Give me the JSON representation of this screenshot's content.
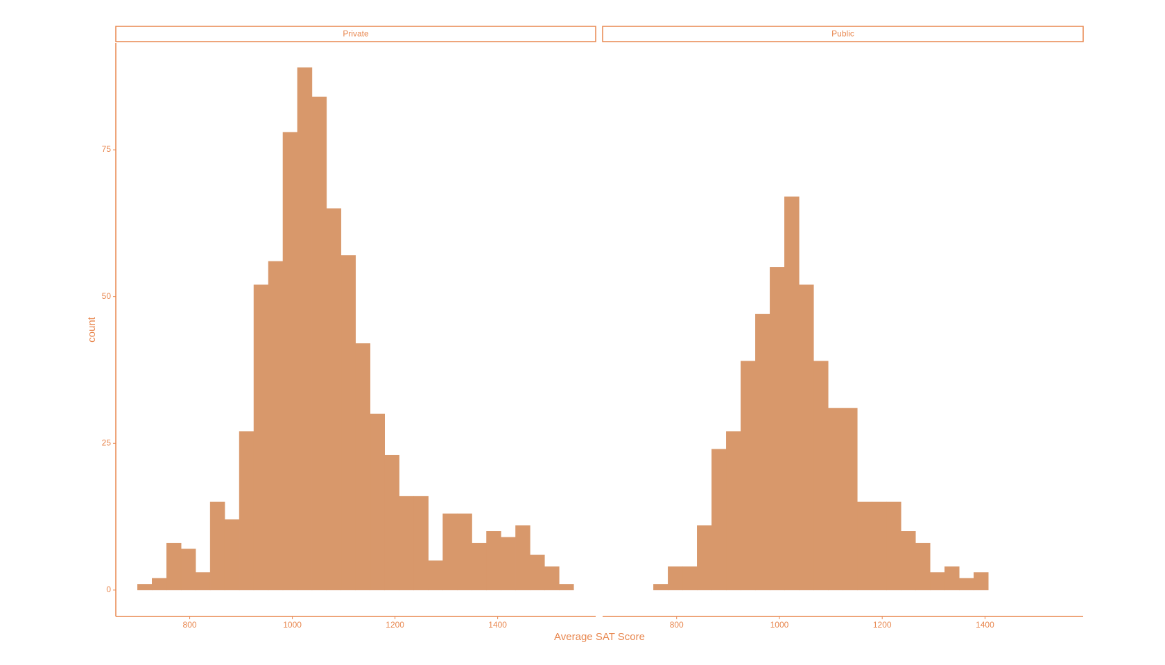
{
  "chart_data": [
    {
      "type": "histogram",
      "title": "Private",
      "xlabel": "Average SAT Score",
      "ylabel": "count",
      "color": "#d8986b",
      "axis_color": "#e8874f",
      "bins": [
        698.3,
        726.6,
        755.0,
        783.3,
        811.6,
        839.9,
        868.3,
        896.6,
        924.9,
        953.3,
        981.6,
        1009.9,
        1038.3,
        1066.6,
        1094.9,
        1123.2,
        1151.6,
        1179.9,
        1208.2,
        1236.6,
        1264.9,
        1293.2,
        1321.6,
        1349.9,
        1378.2,
        1406.5,
        1434.9,
        1463.2,
        1491.5,
        1519.9,
        1548.2
      ],
      "values": [
        1,
        2,
        8,
        7,
        3,
        15,
        12,
        27,
        52,
        56,
        78,
        89,
        84,
        65,
        57,
        42,
        30,
        23,
        16,
        16,
        5,
        13,
        13,
        8,
        10,
        9,
        11,
        6,
        4,
        1
      ],
      "xlim": [
        656,
        1591
      ],
      "xticks": [
        800,
        1000,
        1200,
        1400
      ],
      "ylim": [
        -4.5,
        93.2
      ],
      "yticks": [
        0,
        25,
        50,
        75
      ]
    },
    {
      "type": "histogram",
      "title": "Public",
      "color": "#d8986b",
      "axis_color": "#e8874f",
      "bins": [
        755.0,
        783.3,
        811.6,
        839.9,
        868.3,
        896.6,
        924.9,
        953.3,
        981.6,
        1009.9,
        1038.3,
        1066.6,
        1094.9,
        1123.2,
        1151.6,
        1179.9,
        1208.2,
        1236.6,
        1264.9,
        1293.2,
        1321.6,
        1349.9,
        1378.2,
        1406.5
      ],
      "values": [
        1,
        4,
        4,
        11,
        24,
        27,
        39,
        47,
        55,
        67,
        52,
        39,
        31,
        31,
        15,
        15,
        15,
        10,
        8,
        3,
        4,
        2,
        3
      ],
      "xlim": [
        656,
        1591
      ],
      "xticks": [
        800,
        1000,
        1200,
        1400
      ],
      "ylim": [
        -4.5,
        93.2
      ]
    }
  ]
}
